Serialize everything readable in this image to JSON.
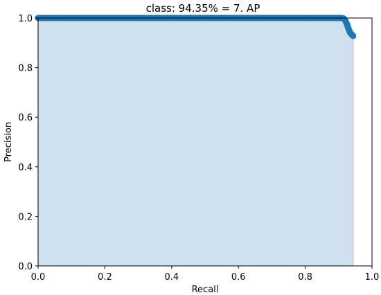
{
  "chart_data": {
    "type": "area",
    "title": "class: 94.35% = 7. AP",
    "xlabel": "Recall",
    "ylabel": "Precision",
    "xlim": [
      0.0,
      1.0
    ],
    "ylim": [
      0.0,
      1.0
    ],
    "x_ticks": [
      "0.0",
      "0.2",
      "0.4",
      "0.6",
      "0.8",
      "1.0"
    ],
    "y_ticks": [
      "0.0",
      "0.2",
      "0.4",
      "0.6",
      "0.8",
      "1.0"
    ],
    "grid": false,
    "legend": "none",
    "line_color": "#1f77b4",
    "fill_color": "#d0e1ee",
    "recall_end": 0.9435,
    "series": [
      {
        "x": [
          0.0,
          0.1,
          0.2,
          0.3,
          0.4,
          0.5,
          0.6,
          0.7,
          0.8,
          0.9,
          0.91,
          0.915,
          0.92,
          0.925,
          0.93,
          0.935,
          0.94,
          0.9435
        ],
        "y": [
          1.0,
          1.0,
          1.0,
          1.0,
          1.0,
          1.0,
          1.0,
          1.0,
          1.0,
          1.0,
          1.0,
          0.998,
          0.99,
          0.975,
          0.955,
          0.94,
          0.932,
          0.928
        ]
      }
    ]
  }
}
